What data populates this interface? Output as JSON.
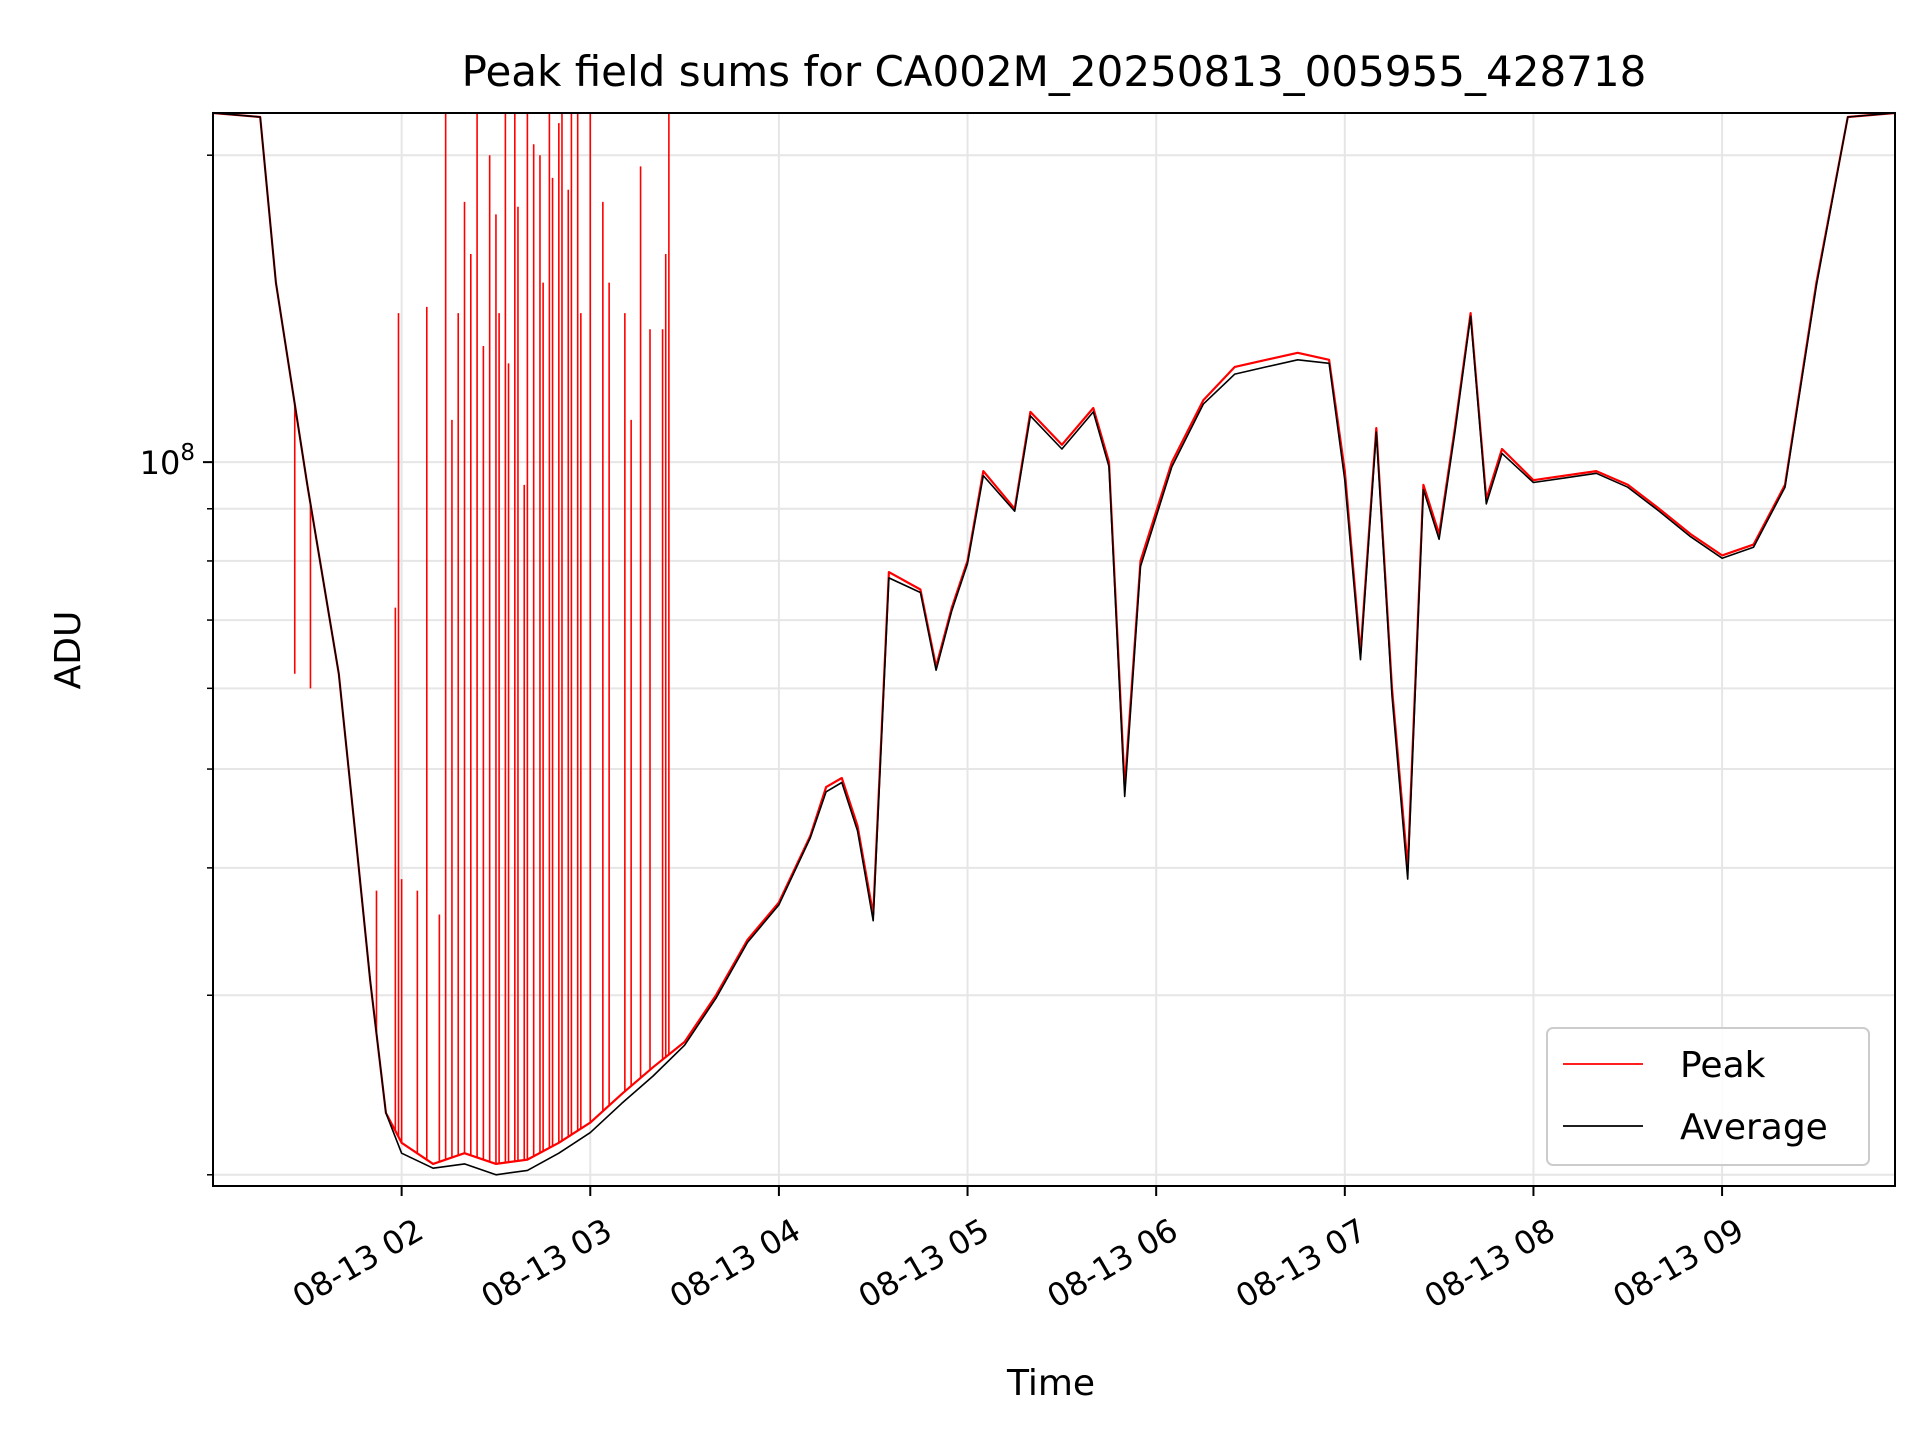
{
  "chart_data": {
    "type": "line",
    "title": "Peak field sums for CA002M_20250813_005955_428718",
    "xlabel": "Time",
    "ylabel": "ADU",
    "yscale": "log",
    "ylim": [
      19500000,
      220000000
    ],
    "xlim": [
      "2025-08-13T01:00:00",
      "2025-08-13T09:55:00"
    ],
    "grid": true,
    "legend_position": "lower-right",
    "x_ticks": [
      "08-13 02",
      "08-13 03",
      "08-13 04",
      "08-13 05",
      "08-13 06",
      "08-13 07",
      "08-13 08",
      "08-13 09"
    ],
    "y_ticks": [
      {
        "value": 100000000,
        "base": "10",
        "exp": "8"
      }
    ],
    "y_minor_ticks": [
      20000000,
      30000000,
      40000000,
      50000000,
      60000000,
      70000000,
      80000000,
      90000000,
      200000000
    ],
    "colors": {
      "Peak": "#ff0000",
      "Average": "#000000"
    },
    "series": [
      {
        "name": "Peak",
        "points": [
          [
            "2025-08-13T01:00:00",
            220000000
          ],
          [
            "2025-08-13T01:15:00",
            218000000
          ],
          [
            "2025-08-13T01:20:00",
            150000000
          ],
          [
            "2025-08-13T01:30:00",
            95000000
          ],
          [
            "2025-08-13T01:40:00",
            62000000
          ],
          [
            "2025-08-13T01:45:00",
            44000000
          ],
          [
            "2025-08-13T01:50:00",
            31000000
          ],
          [
            "2025-08-13T01:55:00",
            23000000
          ],
          [
            "2025-08-13T02:00:00",
            21500000
          ],
          [
            "2025-08-13T02:10:00",
            20500000
          ],
          [
            "2025-08-13T02:20:00",
            21000000
          ],
          [
            "2025-08-13T02:30:00",
            20500000
          ],
          [
            "2025-08-13T02:40:00",
            20700000
          ],
          [
            "2025-08-13T02:50:00",
            21500000
          ],
          [
            "2025-08-13T03:00:00",
            22500000
          ],
          [
            "2025-08-13T03:10:00",
            24000000
          ],
          [
            "2025-08-13T03:20:00",
            25500000
          ],
          [
            "2025-08-13T03:30:00",
            27000000
          ],
          [
            "2025-08-13T03:40:00",
            30000000
          ],
          [
            "2025-08-13T03:50:00",
            34000000
          ],
          [
            "2025-08-13T04:00:00",
            37000000
          ],
          [
            "2025-08-13T04:10:00",
            43000000
          ],
          [
            "2025-08-13T04:15:00",
            48000000
          ],
          [
            "2025-08-13T04:20:00",
            49000000
          ],
          [
            "2025-08-13T04:25:00",
            44000000
          ],
          [
            "2025-08-13T04:30:00",
            36000000
          ],
          [
            "2025-08-13T04:35:00",
            78000000
          ],
          [
            "2025-08-13T04:45:00",
            75000000
          ],
          [
            "2025-08-13T04:50:00",
            63000000
          ],
          [
            "2025-08-13T04:55:00",
            72000000
          ],
          [
            "2025-08-13T05:00:00",
            80000000
          ],
          [
            "2025-08-13T05:05:00",
            98000000
          ],
          [
            "2025-08-13T05:15:00",
            90000000
          ],
          [
            "2025-08-13T05:20:00",
            112000000
          ],
          [
            "2025-08-13T05:30:00",
            104000000
          ],
          [
            "2025-08-13T05:40:00",
            113000000
          ],
          [
            "2025-08-13T05:45:00",
            100000000
          ],
          [
            "2025-08-13T05:50:00",
            48000000
          ],
          [
            "2025-08-13T05:55:00",
            80000000
          ],
          [
            "2025-08-13T06:05:00",
            100000000
          ],
          [
            "2025-08-13T06:15:00",
            115000000
          ],
          [
            "2025-08-13T06:25:00",
            124000000
          ],
          [
            "2025-08-13T06:35:00",
            126000000
          ],
          [
            "2025-08-13T06:45:00",
            128000000
          ],
          [
            "2025-08-13T06:55:00",
            126000000
          ],
          [
            "2025-08-13T07:00:00",
            98000000
          ],
          [
            "2025-08-13T07:05:00",
            65000000
          ],
          [
            "2025-08-13T07:10:00",
            108000000
          ],
          [
            "2025-08-13T07:15:00",
            60000000
          ],
          [
            "2025-08-13T07:20:00",
            40000000
          ],
          [
            "2025-08-13T07:25:00",
            95000000
          ],
          [
            "2025-08-13T07:30:00",
            85000000
          ],
          [
            "2025-08-13T07:35:00",
            108000000
          ],
          [
            "2025-08-13T07:40:00",
            140000000
          ],
          [
            "2025-08-13T07:45:00",
            92000000
          ],
          [
            "2025-08-13T07:50:00",
            103000000
          ],
          [
            "2025-08-13T08:00:00",
            96000000
          ],
          [
            "2025-08-13T08:10:00",
            97000000
          ],
          [
            "2025-08-13T08:20:00",
            98000000
          ],
          [
            "2025-08-13T08:30:00",
            95000000
          ],
          [
            "2025-08-13T08:40:00",
            90000000
          ],
          [
            "2025-08-13T08:50:00",
            85000000
          ],
          [
            "2025-08-13T09:00:00",
            81000000
          ],
          [
            "2025-08-13T09:10:00",
            83000000
          ],
          [
            "2025-08-13T09:20:00",
            95000000
          ],
          [
            "2025-08-13T09:30:00",
            150000000
          ],
          [
            "2025-08-13T09:40:00",
            218000000
          ],
          [
            "2025-08-13T09:55:00",
            220000000
          ]
        ],
        "spikes": [
          [
            "2025-08-13T01:26:00",
            62000000
          ],
          [
            "2025-08-13T01:31:00",
            60000000
          ],
          [
            "2025-08-13T01:52:00",
            38000000
          ],
          [
            "2025-08-13T01:58:00",
            72000000
          ],
          [
            "2025-08-13T01:59:00",
            140000000
          ],
          [
            "2025-08-13T02:00:00",
            39000000
          ],
          [
            "2025-08-13T02:05:00",
            38000000
          ],
          [
            "2025-08-13T02:08:00",
            142000000
          ],
          [
            "2025-08-13T02:12:00",
            36000000
          ],
          [
            "2025-08-13T02:14:00",
            220000000
          ],
          [
            "2025-08-13T02:16:00",
            110000000
          ],
          [
            "2025-08-13T02:18:00",
            140000000
          ],
          [
            "2025-08-13T02:20:00",
            180000000
          ],
          [
            "2025-08-13T02:22:00",
            160000000
          ],
          [
            "2025-08-13T02:24:00",
            220000000
          ],
          [
            "2025-08-13T02:26:00",
            130000000
          ],
          [
            "2025-08-13T02:28:00",
            200000000
          ],
          [
            "2025-08-13T02:30:00",
            175000000
          ],
          [
            "2025-08-13T02:31:00",
            140000000
          ],
          [
            "2025-08-13T02:33:00",
            220000000
          ],
          [
            "2025-08-13T02:34:00",
            125000000
          ],
          [
            "2025-08-13T02:36:00",
            220000000
          ],
          [
            "2025-08-13T02:37:00",
            178000000
          ],
          [
            "2025-08-13T02:39:00",
            95000000
          ],
          [
            "2025-08-13T02:40:00",
            220000000
          ],
          [
            "2025-08-13T02:42:00",
            205000000
          ],
          [
            "2025-08-13T02:44:00",
            200000000
          ],
          [
            "2025-08-13T02:45:00",
            150000000
          ],
          [
            "2025-08-13T02:47:00",
            220000000
          ],
          [
            "2025-08-13T02:48:00",
            190000000
          ],
          [
            "2025-08-13T02:50:00",
            215000000
          ],
          [
            "2025-08-13T02:51:00",
            220000000
          ],
          [
            "2025-08-13T02:53:00",
            185000000
          ],
          [
            "2025-08-13T02:54:00",
            220000000
          ],
          [
            "2025-08-13T02:56:00",
            220000000
          ],
          [
            "2025-08-13T02:57:00",
            140000000
          ],
          [
            "2025-08-13T03:00:00",
            220000000
          ],
          [
            "2025-08-13T03:04:00",
            180000000
          ],
          [
            "2025-08-13T03:06:00",
            150000000
          ],
          [
            "2025-08-13T03:11:00",
            140000000
          ],
          [
            "2025-08-13T03:13:00",
            110000000
          ],
          [
            "2025-08-13T03:16:00",
            195000000
          ],
          [
            "2025-08-13T03:19:00",
            135000000
          ],
          [
            "2025-08-13T03:23:00",
            135000000
          ],
          [
            "2025-08-13T03:24:00",
            160000000
          ],
          [
            "2025-08-13T03:25:00",
            220000000
          ]
        ]
      },
      {
        "name": "Average",
        "points": [
          [
            "2025-08-13T01:00:00",
            220000000
          ],
          [
            "2025-08-13T01:15:00",
            218000000
          ],
          [
            "2025-08-13T01:20:00",
            150000000
          ],
          [
            "2025-08-13T01:30:00",
            95000000
          ],
          [
            "2025-08-13T01:40:00",
            62000000
          ],
          [
            "2025-08-13T01:45:00",
            44000000
          ],
          [
            "2025-08-13T01:50:00",
            31000000
          ],
          [
            "2025-08-13T01:55:00",
            23000000
          ],
          [
            "2025-08-13T02:00:00",
            21000000
          ],
          [
            "2025-08-13T02:10:00",
            20300000
          ],
          [
            "2025-08-13T02:20:00",
            20500000
          ],
          [
            "2025-08-13T02:30:00",
            20000000
          ],
          [
            "2025-08-13T02:40:00",
            20200000
          ],
          [
            "2025-08-13T02:50:00",
            21000000
          ],
          [
            "2025-08-13T03:00:00",
            22000000
          ],
          [
            "2025-08-13T03:10:00",
            23500000
          ],
          [
            "2025-08-13T03:20:00",
            25000000
          ],
          [
            "2025-08-13T03:30:00",
            26800000
          ],
          [
            "2025-08-13T03:40:00",
            29800000
          ],
          [
            "2025-08-13T03:50:00",
            33800000
          ],
          [
            "2025-08-13T04:00:00",
            36800000
          ],
          [
            "2025-08-13T04:10:00",
            42800000
          ],
          [
            "2025-08-13T04:15:00",
            47500000
          ],
          [
            "2025-08-13T04:20:00",
            48500000
          ],
          [
            "2025-08-13T04:25:00",
            43500000
          ],
          [
            "2025-08-13T04:30:00",
            35500000
          ],
          [
            "2025-08-13T04:35:00",
            77000000
          ],
          [
            "2025-08-13T04:45:00",
            74500000
          ],
          [
            "2025-08-13T04:50:00",
            62500000
          ],
          [
            "2025-08-13T04:55:00",
            71500000
          ],
          [
            "2025-08-13T05:00:00",
            79500000
          ],
          [
            "2025-08-13T05:05:00",
            97000000
          ],
          [
            "2025-08-13T05:15:00",
            89500000
          ],
          [
            "2025-08-13T05:20:00",
            111000000
          ],
          [
            "2025-08-13T05:30:00",
            103000000
          ],
          [
            "2025-08-13T05:40:00",
            112000000
          ],
          [
            "2025-08-13T05:45:00",
            99000000
          ],
          [
            "2025-08-13T05:50:00",
            47000000
          ],
          [
            "2025-08-13T05:55:00",
            79000000
          ],
          [
            "2025-08-13T06:05:00",
            99000000
          ],
          [
            "2025-08-13T06:15:00",
            114000000
          ],
          [
            "2025-08-13T06:25:00",
            122000000
          ],
          [
            "2025-08-13T06:35:00",
            124000000
          ],
          [
            "2025-08-13T06:45:00",
            126000000
          ],
          [
            "2025-08-13T06:55:00",
            125000000
          ],
          [
            "2025-08-13T07:00:00",
            96000000
          ],
          [
            "2025-08-13T07:05:00",
            64000000
          ],
          [
            "2025-08-13T07:10:00",
            107000000
          ],
          [
            "2025-08-13T07:15:00",
            59000000
          ],
          [
            "2025-08-13T07:20:00",
            39000000
          ],
          [
            "2025-08-13T07:25:00",
            94000000
          ],
          [
            "2025-08-13T07:30:00",
            84000000
          ],
          [
            "2025-08-13T07:35:00",
            107000000
          ],
          [
            "2025-08-13T07:40:00",
            139000000
          ],
          [
            "2025-08-13T07:45:00",
            91000000
          ],
          [
            "2025-08-13T07:50:00",
            102000000
          ],
          [
            "2025-08-13T08:00:00",
            95500000
          ],
          [
            "2025-08-13T08:10:00",
            96500000
          ],
          [
            "2025-08-13T08:20:00",
            97500000
          ],
          [
            "2025-08-13T08:30:00",
            94500000
          ],
          [
            "2025-08-13T08:40:00",
            89500000
          ],
          [
            "2025-08-13T08:50:00",
            84500000
          ],
          [
            "2025-08-13T09:00:00",
            80500000
          ],
          [
            "2025-08-13T09:10:00",
            82500000
          ],
          [
            "2025-08-13T09:20:00",
            94500000
          ],
          [
            "2025-08-13T09:30:00",
            149000000
          ],
          [
            "2025-08-13T09:40:00",
            218000000
          ],
          [
            "2025-08-13T09:55:00",
            220000000
          ]
        ]
      }
    ]
  }
}
